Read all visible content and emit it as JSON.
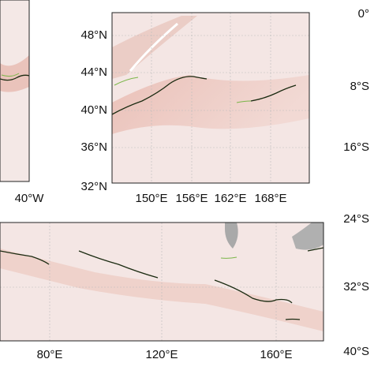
{
  "left_panel": {
    "xticks": [
      "40°W"
    ]
  },
  "top_panel": {
    "yticks": [
      "48°N",
      "44°N",
      "40°N",
      "36°N",
      "32°N"
    ],
    "xticks": [
      "150°E",
      "156°E",
      "162°E",
      "168°E"
    ]
  },
  "bottom_panel": {
    "xticks": [
      "80°E",
      "120°E",
      "160°E"
    ]
  },
  "right_labels": [
    "0°",
    "8°S",
    "16°S",
    "24°S",
    "32°S",
    "40°S"
  ]
}
